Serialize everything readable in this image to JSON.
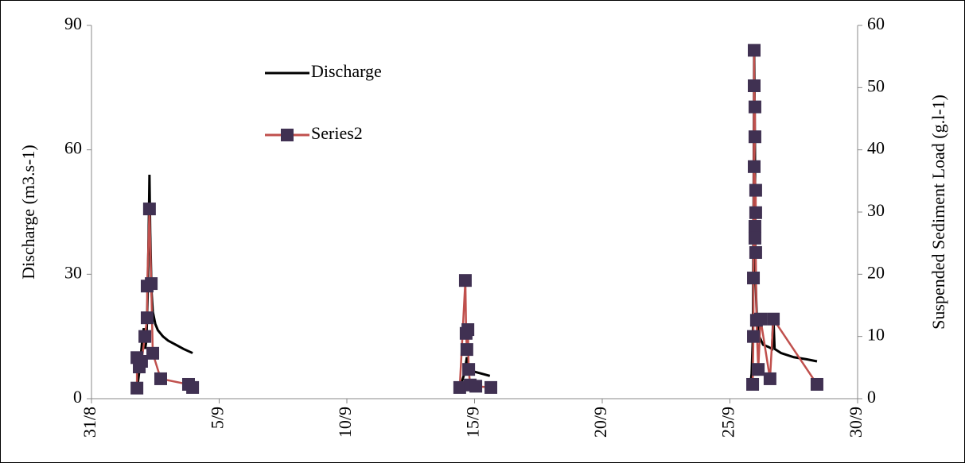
{
  "chart_data": {
    "type": "line",
    "xlabel": null,
    "ylabel": "Discharge (m3.s-1)",
    "y2label": "Suspended Sediment Load (g.l-1)",
    "xlim": [
      0,
      30
    ],
    "xticks": [
      {
        "value": 0,
        "label": "31/8"
      },
      {
        "value": 5,
        "label": "5/9"
      },
      {
        "value": 10,
        "label": "10/9"
      },
      {
        "value": 15,
        "label": "15/9"
      },
      {
        "value": 20,
        "label": "20/9"
      },
      {
        "value": 25,
        "label": "25/9"
      },
      {
        "value": 30,
        "label": "30/9"
      }
    ],
    "ylim": [
      0,
      90
    ],
    "yticks": [
      0,
      30,
      60,
      90
    ],
    "y2lim": [
      0,
      60
    ],
    "y2ticks": [
      0,
      10,
      20,
      30,
      40,
      50,
      60
    ],
    "legend": "upper left",
    "series": [
      {
        "name": "Discharge",
        "color": "#000000",
        "marker": "none",
        "x": [
          1.8,
          1.9,
          2.0,
          2.05,
          2.1,
          2.15,
          2.2,
          2.25,
          2.27,
          2.3,
          2.35,
          2.4,
          2.5,
          2.6,
          2.8,
          3.0,
          3.3,
          3.6,
          3.96,
          null,
          14.4,
          14.5,
          14.6,
          14.7,
          14.75,
          14.85,
          15.0,
          15.3,
          15.6,
          null,
          25.8,
          25.85,
          25.9,
          25.93,
          25.95,
          25.98,
          26.0,
          26.05,
          26.15,
          26.3,
          26.5,
          26.65,
          26.7,
          26.75,
          27.0,
          27.5,
          28.0,
          28.41
        ],
        "values": [
          3,
          8,
          15,
          17,
          12,
          14,
          25,
          45,
          54,
          40,
          26,
          21,
          18,
          16.5,
          15,
          14,
          13,
          12,
          11,
          null,
          3,
          4,
          6,
          10,
          8,
          7,
          6.5,
          6,
          5.5,
          null,
          3,
          6,
          15,
          50,
          84,
          60,
          30,
          20,
          15,
          13,
          12.5,
          12,
          20,
          12,
          11,
          10,
          9.5,
          9
        ]
      },
      {
        "name": "Series2",
        "color": "#c0504d",
        "marker_color": "#403152",
        "marker": "square",
        "axis": "y2",
        "x": [
          1.78,
          1.78,
          1.87,
          1.96,
          2.09,
          2.18,
          2.18,
          2.27,
          2.34,
          2.4,
          2.71,
          3.8,
          3.96,
          null,
          14.42,
          14.64,
          14.67,
          14.7,
          14.74,
          14.77,
          14.83,
          15.05,
          15.64,
          null,
          25.89,
          25.92,
          25.92,
          25.95,
          25.95,
          25.98,
          25.98,
          25.95,
          26.01,
          26.01,
          25.98,
          25.98,
          26.01,
          26.04,
          26.11,
          26.2,
          26.57,
          26.7,
          28.41
        ],
        "values": [
          1.7,
          6.6,
          5.1,
          6.0,
          10.0,
          13.0,
          18.1,
          30.5,
          18.5,
          7.3,
          3.2,
          2.3,
          1.8,
          null,
          1.8,
          19.0,
          10.5,
          7.9,
          11.1,
          4.7,
          2.2,
          2.0,
          1.8,
          null,
          2.3,
          10.0,
          19.4,
          56.0,
          50.3,
          46.9,
          42.1,
          37.3,
          33.5,
          29.9,
          27.7,
          25.8,
          23.5,
          12.6,
          4.7,
          12.8,
          3.2,
          12.8,
          2.3
        ]
      }
    ]
  }
}
